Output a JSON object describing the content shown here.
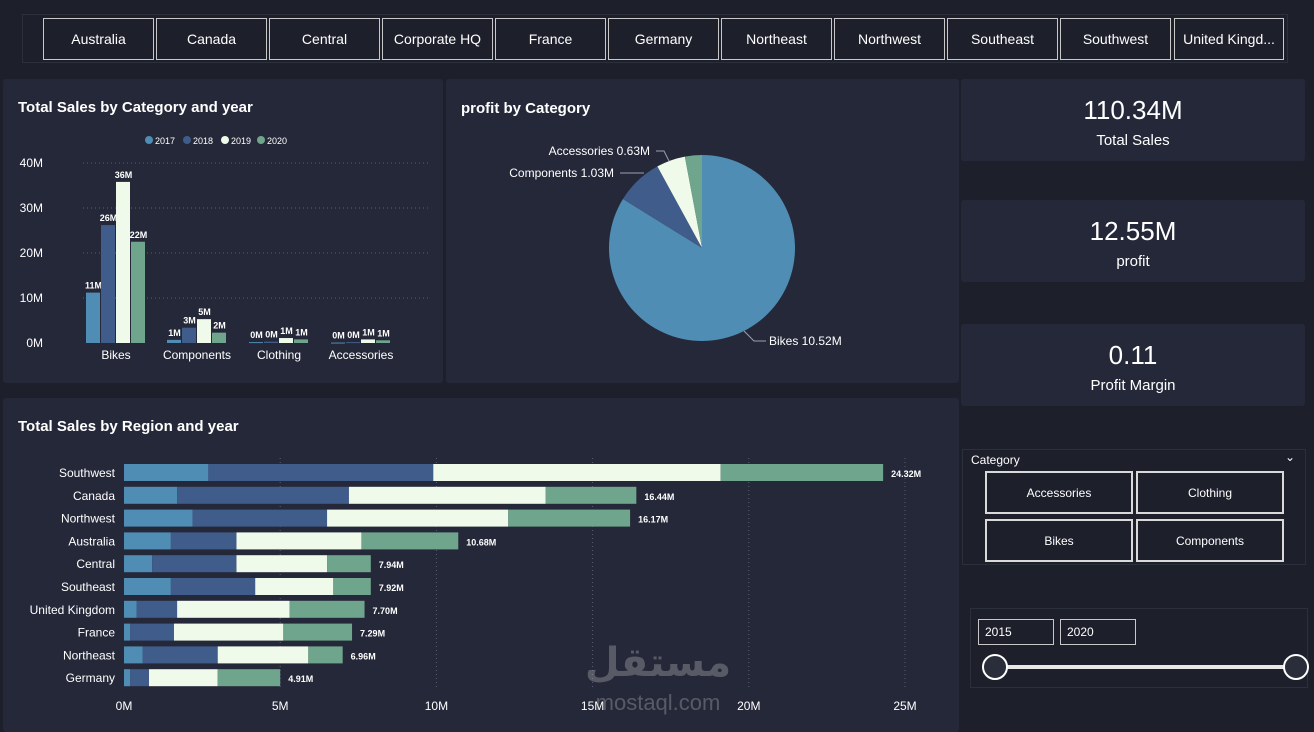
{
  "region_buttons": [
    "Australia",
    "Canada",
    "Central",
    "Corporate HQ",
    "France",
    "Germany",
    "Northeast",
    "Northwest",
    "Southeast",
    "Southwest",
    "United Kingd..."
  ],
  "colors": {
    "y2017": "#4f8db5",
    "y2018": "#405c8a",
    "y2019": "#effaea",
    "y2020": "#6fa58c",
    "bg": "#1d1f2b",
    "panel": "#252839"
  },
  "category_chart": {
    "title": "Total Sales by Category and year",
    "legend": [
      "2017",
      "2018",
      "2019",
      "2020"
    ],
    "y_ticks": [
      "40M",
      "30M",
      "20M",
      "10M",
      "0M"
    ],
    "categories": [
      "Bikes",
      "Components",
      "Clothing",
      "Accessories"
    ],
    "data_labels": [
      [
        "11M",
        "26M",
        "36M",
        "22M"
      ],
      [
        "1M",
        "3M",
        "5M",
        "2M"
      ],
      [
        "0M",
        "0M",
        "1M",
        "1M"
      ],
      [
        "0M",
        "0M",
        "1M",
        "1M"
      ]
    ]
  },
  "profit_chart": {
    "title": "profit by Category",
    "labels": [
      "Bikes 10.52M",
      "Components 1.03M",
      "Accessories 0.63M"
    ]
  },
  "kpis": [
    {
      "value": "110.34M",
      "label": "Total Sales"
    },
    {
      "value": "12.55M",
      "label": "profit"
    },
    {
      "value": "0.11",
      "label": "Profit Margin"
    }
  ],
  "region_chart": {
    "title": "Total Sales by Region and year",
    "regions": [
      "Southwest",
      "Canada",
      "Northwest",
      "Australia",
      "Central",
      "Southeast",
      "United Kingdom",
      "France",
      "Northeast",
      "Germany"
    ],
    "total_labels": [
      "24.32M",
      "16.44M",
      "16.17M",
      "10.68M",
      "7.94M",
      "7.92M",
      "7.70M",
      "7.29M",
      "6.96M",
      "4.91M"
    ],
    "x_ticks": [
      "0M",
      "5M",
      "10M",
      "15M",
      "20M",
      "25M"
    ]
  },
  "category_slicer": {
    "header": "Category",
    "items": [
      "Accessories",
      "Clothing",
      "Bikes",
      "Components"
    ]
  },
  "year_slicer": {
    "from": "2015",
    "to": "2020"
  },
  "watermark": {
    "arabic": "مستقل",
    "latin": "mostaql.com"
  },
  "chart_data": [
    {
      "type": "bar",
      "title": "Total Sales by Category and year",
      "categories": [
        "Bikes",
        "Components",
        "Clothing",
        "Accessories"
      ],
      "series": [
        {
          "name": "2017",
          "values": [
            11.2,
            0.7,
            0.2,
            0.1
          ]
        },
        {
          "name": "2018",
          "values": [
            26.2,
            3.4,
            0.3,
            0.2
          ]
        },
        {
          "name": "2019",
          "values": [
            35.8,
            5.3,
            1.1,
            0.8
          ]
        },
        {
          "name": "2020",
          "values": [
            22.5,
            2.3,
            0.8,
            0.6
          ]
        }
      ],
      "ylim": [
        0,
        40
      ],
      "legend": "top",
      "grid": true
    },
    {
      "type": "pie",
      "title": "profit by Category",
      "categories": [
        "Bikes",
        "Components",
        "Accessories",
        "Clothing"
      ],
      "values": [
        10.52,
        1.03,
        0.63,
        0.37
      ]
    },
    {
      "type": "bar",
      "orientation": "horizontal",
      "stacked": true,
      "title": "Total Sales by Region and year",
      "categories": [
        "Southwest",
        "Canada",
        "Northwest",
        "Australia",
        "Central",
        "Southeast",
        "United Kingdom",
        "France",
        "Northeast",
        "Germany"
      ],
      "series": [
        {
          "name": "2017",
          "values": [
            2.7,
            1.7,
            2.2,
            1.5,
            0.9,
            1.5,
            0.4,
            0.2,
            0.6,
            0.2
          ]
        },
        {
          "name": "2018",
          "values": [
            7.2,
            5.5,
            4.3,
            2.1,
            2.7,
            2.7,
            1.3,
            1.4,
            2.4,
            0.6
          ]
        },
        {
          "name": "2019",
          "values": [
            9.2,
            6.3,
            5.8,
            4.0,
            2.9,
            2.5,
            3.6,
            3.5,
            2.9,
            2.2
          ]
        },
        {
          "name": "2020",
          "values": [
            5.2,
            2.9,
            3.9,
            3.1,
            1.4,
            1.2,
            2.4,
            2.2,
            1.1,
            2.0
          ]
        }
      ],
      "xlim": [
        0,
        25
      ],
      "grid": true
    }
  ]
}
